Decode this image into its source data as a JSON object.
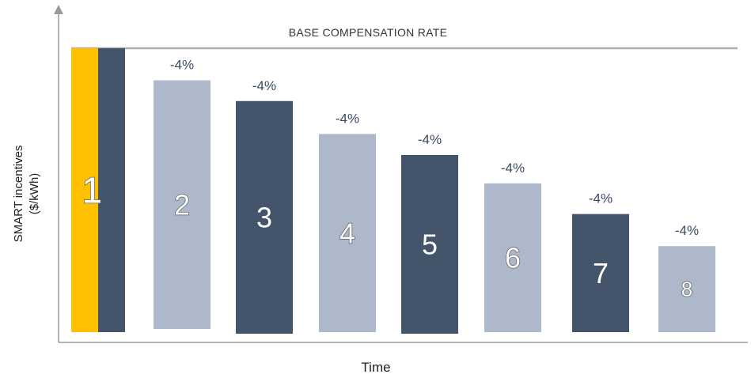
{
  "chart_data": {
    "type": "bar",
    "title": "",
    "xlabel": "Time",
    "ylabel": "SMART incentives ($/kWh)",
    "ylabel_lines": [
      "SMART incentives",
      "($/kWh)"
    ],
    "base_line_label": "BASE COMPENSATION RATE",
    "categories": [
      "1",
      "2",
      "3",
      "4",
      "5",
      "6",
      "7",
      "8"
    ],
    "values": [
      100,
      88.7,
      81.4,
      69.8,
      62.4,
      52.4,
      41.6,
      30.3
    ],
    "base_value": 100,
    "ylim": [
      0,
      110
    ],
    "first_bar_split": {
      "left_color": "#FFC000",
      "right_color": "#44546A"
    },
    "change_labels": [
      "",
      "-4%",
      "-4%",
      "-4%",
      "-4%",
      "-4%",
      "-4%",
      "-4%"
    ],
    "bar_colors": [
      "#44546A",
      "#ADB9CA",
      "#44546A",
      "#ADB9CA",
      "#44546A",
      "#ADB9CA",
      "#44546A",
      "#ADB9CA"
    ],
    "grid": false,
    "legend": "none"
  }
}
